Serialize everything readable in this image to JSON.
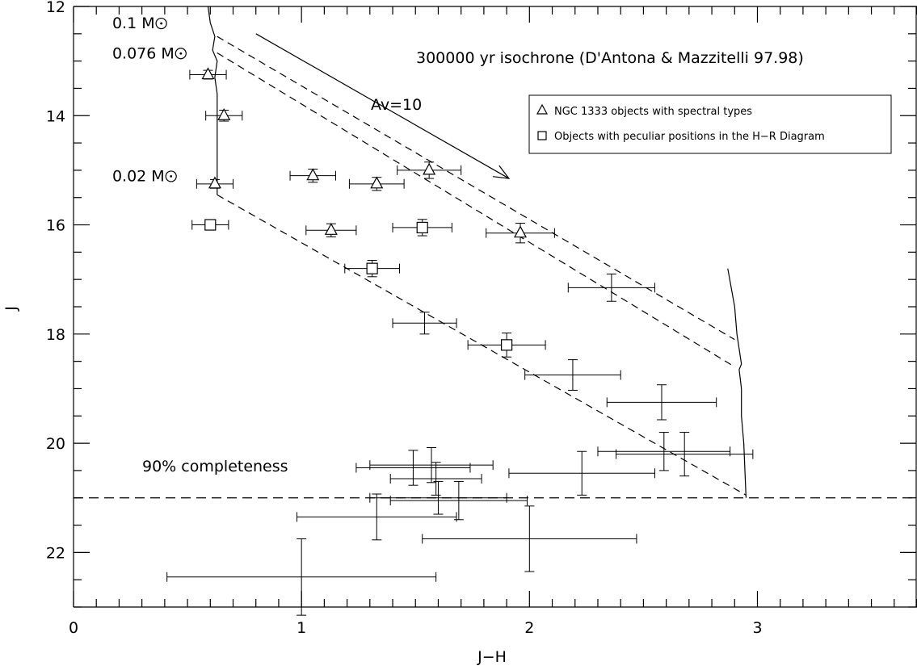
{
  "chart_data": {
    "type": "scatter",
    "title": "",
    "xlabel": "J−H",
    "ylabel": "J",
    "xlim": [
      0,
      3.7
    ],
    "ylim": [
      23,
      12
    ],
    "x_ticks": [
      0,
      1,
      2,
      3
    ],
    "x_tick_labels": [
      "0",
      "1",
      "2",
      "3"
    ],
    "y_ticks": [
      12,
      14,
      16,
      18,
      20,
      22
    ],
    "y_tick_labels": [
      "12",
      "14",
      "16",
      "18",
      "20",
      "22"
    ],
    "legend": {
      "placement": "top-right",
      "entries": [
        {
          "symbol": "triangle",
          "label": "NGC 1333 objects with spectral types"
        },
        {
          "symbol": "square",
          "label": "Objects with peculiar positions in the H−R Diagram"
        }
      ]
    },
    "annotations": {
      "isochrone": "300000 yr isochrone (D'Antona & Mazzitelli 97.98)",
      "reddening": "Av=10",
      "completeness": "90% completeness",
      "mass_labels": [
        {
          "text": "0.1 M",
          "jh": 0.17,
          "j": 12.4
        },
        {
          "text": "0.076 M",
          "jh": 0.17,
          "j": 12.95
        },
        {
          "text": "0.02 M",
          "jh": 0.17,
          "j": 15.2
        }
      ]
    },
    "completeness_limit_J": 21.0,
    "reddening_vector": {
      "from": [
        0.8,
        12.5
      ],
      "to": [
        1.91,
        15.15
      ]
    },
    "isochrone_left": [
      [
        0.59,
        12.0
      ],
      [
        0.6,
        12.3
      ],
      [
        0.62,
        12.55
      ],
      [
        0.61,
        12.8
      ],
      [
        0.63,
        13.0
      ],
      [
        0.62,
        13.3
      ],
      [
        0.63,
        13.6
      ],
      [
        0.63,
        14.0
      ],
      [
        0.63,
        14.5
      ],
      [
        0.63,
        15.0
      ],
      [
        0.63,
        15.45
      ]
    ],
    "isochrone_right": [
      [
        2.87,
        16.8
      ],
      [
        2.9,
        17.5
      ],
      [
        2.91,
        18.0
      ],
      [
        2.93,
        18.55
      ],
      [
        2.92,
        18.65
      ],
      [
        2.93,
        19.0
      ],
      [
        2.93,
        19.5
      ],
      [
        2.94,
        20.0
      ],
      [
        2.95,
        21.0
      ]
    ],
    "reddening_tracks": [
      {
        "from": [
          0.63,
          12.55
        ],
        "to": [
          2.9,
          18.1
        ]
      },
      {
        "from": [
          0.63,
          12.85
        ],
        "to": [
          2.9,
          18.6
        ]
      },
      {
        "from": [
          0.63,
          15.45
        ],
        "to": [
          2.95,
          20.95
        ]
      }
    ],
    "series": [
      {
        "name": "NGC 1333 objects with spectral types",
        "symbol": "triangle",
        "points": [
          {
            "x": 0.59,
            "y": 13.25,
            "xerr": 0.08,
            "yerr": 0.08
          },
          {
            "x": 0.66,
            "y": 14.0,
            "xerr": 0.08,
            "yerr": 0.1
          },
          {
            "x": 0.62,
            "y": 15.25,
            "xerr": 0.08,
            "yerr": 0.08
          },
          {
            "x": 1.05,
            "y": 15.1,
            "xerr": 0.1,
            "yerr": 0.12
          },
          {
            "x": 1.33,
            "y": 15.25,
            "xerr": 0.12,
            "yerr": 0.12
          },
          {
            "x": 1.56,
            "y": 15.0,
            "xerr": 0.14,
            "yerr": 0.15
          },
          {
            "x": 1.13,
            "y": 16.1,
            "xerr": 0.11,
            "yerr": 0.12
          },
          {
            "x": 1.96,
            "y": 16.15,
            "xerr": 0.15,
            "yerr": 0.18
          }
        ]
      },
      {
        "name": "Objects with peculiar positions in the H−R Diagram",
        "symbol": "square",
        "points": [
          {
            "x": 0.6,
            "y": 16.0,
            "xerr": 0.08,
            "yerr": 0.08
          },
          {
            "x": 1.53,
            "y": 16.05,
            "xerr": 0.13,
            "yerr": 0.15
          },
          {
            "x": 1.31,
            "y": 16.8,
            "xerr": 0.12,
            "yerr": 0.15
          },
          {
            "x": 1.9,
            "y": 18.2,
            "xerr": 0.17,
            "yerr": 0.22
          }
        ]
      },
      {
        "name": "",
        "symbol": "cross",
        "points": [
          {
            "x": 2.36,
            "y": 17.15,
            "xerr": 0.19,
            "yerr": 0.25
          },
          {
            "x": 1.54,
            "y": 17.8,
            "xerr": 0.14,
            "yerr": 0.2
          },
          {
            "x": 2.19,
            "y": 18.75,
            "xerr": 0.21,
            "yerr": 0.28
          },
          {
            "x": 2.58,
            "y": 19.25,
            "xerr": 0.24,
            "yerr": 0.32
          },
          {
            "x": 2.59,
            "y": 20.15,
            "xerr": 0.29,
            "yerr": 0.35
          },
          {
            "x": 2.68,
            "y": 20.2,
            "xerr": 0.3,
            "yerr": 0.4
          },
          {
            "x": 1.49,
            "y": 20.45,
            "xerr": 0.25,
            "yerr": 0.32
          },
          {
            "x": 1.57,
            "y": 20.4,
            "xerr": 0.27,
            "yerr": 0.32
          },
          {
            "x": 1.59,
            "y": 20.65,
            "xerr": 0.2,
            "yerr": 0.3
          },
          {
            "x": 2.23,
            "y": 20.55,
            "xerr": 0.32,
            "yerr": 0.4
          },
          {
            "x": 1.6,
            "y": 21.0,
            "xerr": 0.3,
            "yerr": 0.3
          },
          {
            "x": 1.69,
            "y": 21.05,
            "xerr": 0.3,
            "yerr": 0.35
          },
          {
            "x": 1.33,
            "y": 21.35,
            "xerr": 0.35,
            "yerr": 0.42
          },
          {
            "x": 2.0,
            "y": 21.75,
            "xerr": 0.47,
            "yerr": 0.6
          },
          {
            "x": 1.0,
            "y": 22.45,
            "xerr": 0.59,
            "yerr": 0.7
          }
        ]
      }
    ]
  }
}
